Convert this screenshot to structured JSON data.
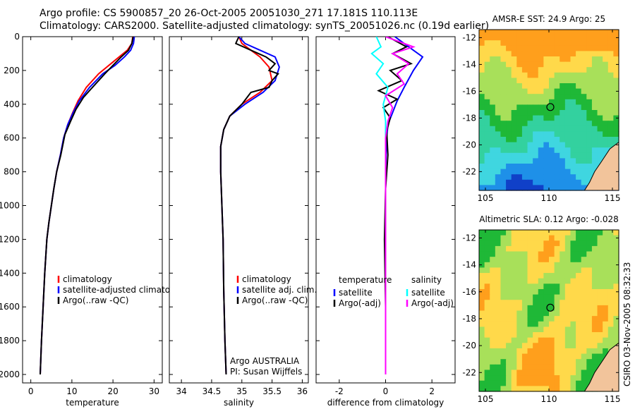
{
  "header": {
    "line1": "Argo profile: CS 5900857_20 26-Oct-2005 20051030_271 17.181S 110.113E",
    "line2": "Climatology: CARS2000. Satellite-adjusted climatology: synTS_20051026.nc (0.19d earlier)"
  },
  "stamp": "CSIRO 03-Nov-2005 08:32:33",
  "colors": {
    "climatology": "#ff0000",
    "satellite": "#0000ff",
    "argo": "#000000",
    "cyan": "#00ffff",
    "magenta": "#ff00ff"
  },
  "chart_data": [
    {
      "id": "temperature",
      "type": "line",
      "xlabel": "temperature",
      "xlim": [
        -2,
        32
      ],
      "xticks": [
        0,
        10,
        20,
        30
      ],
      "ylim": [
        0,
        2050
      ],
      "yticks": [
        0,
        200,
        400,
        600,
        800,
        1000,
        1200,
        1400,
        1600,
        1800,
        2000
      ],
      "y_reversed": true,
      "legend": [
        "climatology",
        "satellite-adjusted climatology",
        "Argo(..raw -QC)"
      ],
      "annotation": [],
      "series": [
        {
          "name": "climatology",
          "color": "#ff0000",
          "x": [
            24.8,
            24.6,
            23.5,
            21.5,
            19.0,
            16.5,
            13.5,
            11.5,
            10.2,
            9.0,
            8.0,
            7.2,
            6.3,
            5.6,
            5.0,
            4.4,
            3.9,
            3.4,
            3.0,
            2.6,
            2.3
          ],
          "y": [
            0,
            40,
            80,
            120,
            170,
            220,
            300,
            380,
            450,
            520,
            600,
            700,
            800,
            900,
            1000,
            1100,
            1200,
            1400,
            1600,
            1800,
            2000
          ]
        },
        {
          "name": "satellite-adjusted climatology",
          "color": "#0000ff",
          "x": [
            25.2,
            25.0,
            24.3,
            22.8,
            20.5,
            17.5,
            14.3,
            11.8,
            10.3,
            9.0,
            8.0,
            7.2,
            6.3,
            5.6,
            5.0,
            4.4,
            3.9,
            3.4,
            3.0,
            2.6,
            2.3
          ],
          "y": [
            0,
            40,
            80,
            120,
            170,
            220,
            300,
            380,
            450,
            520,
            600,
            700,
            800,
            900,
            1000,
            1100,
            1200,
            1400,
            1600,
            1800,
            2000
          ]
        },
        {
          "name": "Argo(..raw -QC)",
          "color": "#000000",
          "x": [
            24.9,
            24.6,
            23.8,
            22.0,
            20.0,
            18.0,
            15.0,
            12.8,
            11.0,
            9.7,
            8.3,
            7.3,
            6.3,
            5.6,
            5.0,
            4.4,
            3.9,
            3.4,
            3.0,
            2.6,
            2.3
          ],
          "y": [
            0,
            40,
            80,
            120,
            170,
            220,
            300,
            360,
            430,
            500,
            580,
            700,
            800,
            900,
            1000,
            1100,
            1200,
            1400,
            1600,
            1800,
            2000
          ]
        }
      ]
    },
    {
      "id": "salinity",
      "type": "line",
      "xlabel": "salinity",
      "xlim": [
        33.8,
        36.1
      ],
      "xticks": [
        34,
        34.5,
        35,
        35.5,
        36
      ],
      "ylim": [
        0,
        2050
      ],
      "yticks": [
        0,
        200,
        400,
        600,
        800,
        1000,
        1200,
        1400,
        1600,
        1800,
        2000
      ],
      "y_reversed": true,
      "legend": [
        "climatology",
        "satellite adj. clim.",
        "Argo(..raw -QC)"
      ],
      "annotation": [
        "Argo AUSTRALIA",
        "PI: Susan Wijffels"
      ],
      "series": [
        {
          "name": "climatology",
          "color": "#ff0000",
          "x": [
            34.95,
            35.0,
            35.15,
            35.3,
            35.45,
            35.5,
            35.3,
            35.0,
            34.8,
            34.7,
            34.65,
            34.65,
            34.67,
            34.69,
            34.7,
            34.72,
            34.74
          ],
          "y": [
            0,
            40,
            80,
            120,
            180,
            260,
            330,
            400,
            470,
            550,
            650,
            800,
            1000,
            1200,
            1500,
            1800,
            2000
          ]
        },
        {
          "name": "satellite adj. clim.",
          "color": "#0000ff",
          "x": [
            34.95,
            35.05,
            35.3,
            35.55,
            35.62,
            35.55,
            35.35,
            35.05,
            34.8,
            34.7,
            34.65,
            34.65,
            34.67,
            34.69,
            34.7,
            34.72,
            34.74
          ],
          "y": [
            0,
            40,
            80,
            120,
            180,
            260,
            330,
            400,
            470,
            550,
            650,
            800,
            1000,
            1200,
            1500,
            1800,
            2000
          ]
        },
        {
          "name": "Argo(..raw -QC)",
          "color": "#000000",
          "x": [
            34.95,
            34.9,
            35.15,
            35.4,
            35.55,
            35.45,
            35.6,
            35.5,
            35.45,
            35.15,
            35.0,
            34.8,
            34.7,
            34.65,
            34.65,
            34.67,
            34.69,
            34.7,
            34.72,
            34.74
          ],
          "y": [
            0,
            40,
            80,
            120,
            160,
            200,
            220,
            260,
            300,
            330,
            400,
            470,
            550,
            650,
            800,
            1000,
            1200,
            1500,
            1800,
            2000
          ]
        }
      ]
    },
    {
      "id": "difference",
      "type": "line",
      "xlabel": "difference from climatology",
      "xlim": [
        -3,
        3
      ],
      "xticks": [
        -2,
        0,
        2
      ],
      "ylim": [
        0,
        2050
      ],
      "yticks": [
        0,
        200,
        400,
        600,
        800,
        1000,
        1200,
        1400,
        1600,
        1800,
        2000
      ],
      "y_reversed": true,
      "legend_groups": [
        {
          "title": "temperature",
          "items": [
            "satellite",
            "Argo(-adj)"
          ]
        },
        {
          "title": "salinity",
          "items": [
            "satellite",
            "Argo(-adj)"
          ]
        }
      ],
      "series": [
        {
          "name": "temperature satellite",
          "color": "#0000ff",
          "x": [
            0.4,
            1.0,
            1.6,
            1.2,
            0.8,
            0.5,
            0.3,
            0.1,
            0.05,
            0.02,
            0.0,
            0.0,
            0.0,
            0.0,
            0.0
          ],
          "y": [
            0,
            60,
            120,
            200,
            300,
            380,
            450,
            520,
            600,
            700,
            800,
            1000,
            1400,
            1800,
            2000
          ]
        },
        {
          "name": "temperature Argo(-adj)",
          "color": "#000000",
          "x": [
            0.1,
            0.9,
            0.3,
            1.1,
            0.2,
            0.7,
            -0.3,
            0.5,
            -0.1,
            0.2,
            0.05,
            0.1,
            0.0,
            -0.05,
            0.0,
            0.0
          ],
          "y": [
            0,
            60,
            100,
            160,
            200,
            260,
            320,
            370,
            420,
            480,
            560,
            700,
            900,
            1200,
            1600,
            2000
          ]
        },
        {
          "name": "salinity satellite",
          "color": "#00ffff",
          "x": [
            -0.4,
            -0.2,
            -0.6,
            -0.1,
            -0.4,
            0.1,
            -0.1,
            0.0,
            0.0,
            0.0,
            0.0,
            0.0,
            0.0
          ],
          "y": [
            0,
            60,
            100,
            160,
            220,
            300,
            400,
            500,
            600,
            800,
            1200,
            1600,
            2000
          ]
        },
        {
          "name": "salinity Argo(-adj)",
          "color": "#ff00ff",
          "x": [
            0.0,
            1.2,
            0.3,
            1.0,
            0.5,
            0.8,
            0.0,
            0.3,
            0.1,
            0.0,
            0.0,
            0.0,
            0.0
          ],
          "y": [
            0,
            60,
            100,
            160,
            220,
            280,
            350,
            420,
            500,
            600,
            1000,
            1600,
            2000
          ]
        }
      ]
    },
    {
      "id": "sst-map",
      "type": "heatmap",
      "title": "AMSR-E SST: 24.9 Argo: 25",
      "xlim": [
        104.5,
        115.5
      ],
      "ylim": [
        -23.4,
        -11.4
      ],
      "xticks": [
        105,
        110,
        115
      ],
      "yticks": [
        -12,
        -14,
        -16,
        -18,
        -20,
        -22
      ],
      "marker": {
        "lon": 110.113,
        "lat": -17.181,
        "fill": "none"
      },
      "colors_by_band": [
        "#ff9f1c",
        "#ffd94a",
        "#a8e05a",
        "#1fb837",
        "#33d19f",
        "#3fd6e0",
        "#1e90e8",
        "#1040c8"
      ],
      "land_color": "#f2c49b"
    },
    {
      "id": "sla-map",
      "type": "heatmap",
      "title": "Altimetric SLA: 0.12 Argo: -0.028",
      "xlim": [
        104.5,
        115.5
      ],
      "ylim": [
        -23.4,
        -11.4
      ],
      "xticks": [
        105,
        110,
        115
      ],
      "yticks": [
        -12,
        -14,
        -16,
        -18,
        -20,
        -22
      ],
      "marker": {
        "lon": 110.113,
        "lat": -17.181,
        "fill": "#1fb837"
      },
      "colors_by_band": [
        "#ff9f1c",
        "#ffd94a",
        "#a8e05a",
        "#1fb837"
      ],
      "land_color": "#f2c49b"
    }
  ]
}
